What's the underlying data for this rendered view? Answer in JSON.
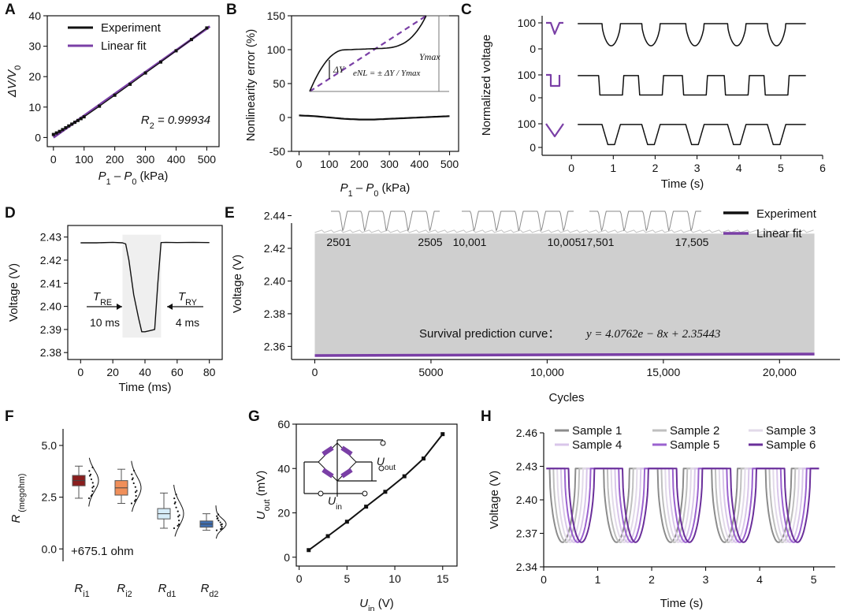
{
  "chart_data": [
    {
      "panel": "A",
      "type": "scatter",
      "xlabel_parts": [
        "P",
        "1",
        " – P",
        "0",
        " (kPa)"
      ],
      "ylabel_parts": [
        "ΔV/V",
        "0"
      ],
      "xlim": [
        -20,
        540
      ],
      "ylim": [
        -3,
        40
      ],
      "xticks": [
        0,
        100,
        200,
        300,
        400,
        500
      ],
      "yticks": [
        0,
        10,
        20,
        30,
        40
      ],
      "legend": [
        "Experiment",
        "Linear fit"
      ],
      "legend_position": "top-left",
      "colors": {
        "experiment": "#111111",
        "fit": "#7a3fa6"
      },
      "annotation_parts": [
        "R",
        "2",
        " = 0.99934"
      ],
      "series": [
        {
          "name": "Experiment",
          "x": [
            0,
            10,
            20,
            30,
            40,
            50,
            60,
            70,
            80,
            90,
            100,
            150,
            200,
            250,
            300,
            350,
            400,
            450,
            500
          ],
          "y": [
            1.0,
            1.5,
            2.0,
            2.6,
            3.2,
            3.8,
            4.4,
            5.0,
            5.6,
            6.2,
            6.8,
            10.3,
            13.9,
            17.5,
            21.2,
            24.8,
            28.5,
            32.2,
            36.0
          ]
        },
        {
          "name": "Linear fit",
          "x": [
            0,
            510
          ],
          "y": [
            0.0,
            36.5
          ]
        }
      ]
    },
    {
      "panel": "B",
      "type": "line",
      "xlabel_parts": [
        "P",
        "1",
        " – P",
        "0",
        " (kPa)"
      ],
      "ylabel": "Nonlinearity error (%)",
      "xlim": [
        -25,
        530
      ],
      "ylim": [
        -50,
        150
      ],
      "xticks": [
        0,
        100,
        200,
        300,
        400,
        500
      ],
      "yticks": [
        -50,
        0,
        50,
        100,
        150
      ],
      "annotations": {
        "delta": "ΔY",
        "ymax": "Ymax",
        "formula": "eNL = ± ΔY / Ymax"
      },
      "series": [
        {
          "name": "error",
          "x": [
            0,
            50,
            100,
            150,
            200,
            250,
            300,
            350,
            400,
            450,
            500
          ],
          "y": [
            3,
            2,
            0,
            -2,
            -3,
            -3,
            -2,
            -1,
            0,
            1,
            2
          ]
        }
      ]
    },
    {
      "panel": "C",
      "type": "line",
      "xlabel": "Time (s)",
      "ylabel": "Normalized voltage",
      "xlim": [
        -0.7,
        6
      ],
      "xticks": [
        0,
        1,
        2,
        3,
        4,
        5,
        6
      ],
      "sub_ylim": [
        -10,
        110
      ],
      "sub_yticks": [
        0,
        100
      ],
      "dips_centers_s": [
        0.95,
        1.9,
        2.95,
        3.95,
        4.9
      ]
    },
    {
      "panel": "D",
      "type": "line",
      "xlabel": "Time (ms)",
      "ylabel": "Voltage (V)",
      "xlim": [
        -8,
        88
      ],
      "ylim": [
        2.377,
        2.435
      ],
      "xticks": [
        0,
        20,
        40,
        60,
        80
      ],
      "yticks": [
        2.38,
        2.39,
        2.4,
        2.41,
        2.42,
        2.43
      ],
      "ytick_labels": [
        "2.38",
        "2.39",
        "2.40",
        "2.41",
        "2.42",
        "2.43"
      ],
      "labels": {
        "tre_main": "T",
        "tre_sub": "RE",
        "tre_value": "10 ms",
        "try_main": "T",
        "try_sub": "RY",
        "try_value": "4 ms"
      },
      "series": [
        {
          "name": "signal",
          "x": [
            0,
            10,
            20,
            26,
            28,
            30,
            33,
            36,
            38,
            40,
            43,
            46,
            48,
            50,
            53,
            60,
            70,
            80
          ],
          "y": [
            2.4275,
            2.4275,
            2.4277,
            2.4275,
            2.427,
            2.42,
            2.405,
            2.395,
            2.389,
            2.389,
            2.3895,
            2.39,
            2.41,
            2.4276,
            2.4277,
            2.4276,
            2.4277,
            2.4276
          ]
        }
      ]
    },
    {
      "panel": "E",
      "type": "area",
      "xlabel": "Cycles",
      "ylabel": "Voltage (V)",
      "xlim": [
        -1000,
        22600
      ],
      "ylim": [
        2.352,
        2.447
      ],
      "xticks": [
        0,
        5000,
        10000,
        15000,
        20000
      ],
      "xtick_labels": [
        "0",
        "5000",
        "10,000",
        "15,000",
        "20,000"
      ],
      "yticks": [
        2.36,
        2.38,
        2.4,
        2.42,
        2.44
      ],
      "ytick_labels": [
        "2.36",
        "2.38",
        "2.40",
        "2.42",
        "2.44"
      ],
      "band": {
        "x": [
          0,
          21500
        ],
        "ymin": 2.3545,
        "ymax": 2.429
      },
      "legend": [
        "Experiment",
        "Linear fit"
      ],
      "legend_position": "top-right",
      "insets": [
        {
          "start": "2501",
          "end": "2505"
        },
        {
          "start": "10,001",
          "end": "10,005"
        },
        {
          "start": "17,501",
          "end": "17,505"
        }
      ],
      "annotation_label": "Survival prediction curve：",
      "annotation_formula": "y = 4.0762e − 8x + 2.35443",
      "series": [
        {
          "name": "fit",
          "x": [
            0,
            21500
          ],
          "y": [
            2.35443,
            2.35531
          ]
        }
      ]
    },
    {
      "panel": "F",
      "type": "box",
      "ylabel_main": "R",
      "ylabel_unit": " (megohm)",
      "ylim": [
        -0.6,
        5.8
      ],
      "yticks": [
        0.0,
        2.5,
        5.0
      ],
      "ytick_labels": [
        "0.0",
        "2.5",
        "5.0"
      ],
      "annotation": "+675.1 ohm",
      "categories": [
        {
          "main": "R",
          "sub": "i1"
        },
        {
          "main": "R",
          "sub": "i2"
        },
        {
          "main": "R",
          "sub": "d1"
        },
        {
          "main": "R",
          "sub": "d2"
        }
      ],
      "boxes": [
        {
          "q1": 3.05,
          "median": 3.3,
          "q3": 3.55,
          "min": 2.45,
          "max": 4.0,
          "color": "#8b1e1e"
        },
        {
          "q1": 2.6,
          "median": 2.95,
          "q3": 3.3,
          "min": 2.2,
          "max": 3.85,
          "color": "#f08f5a"
        },
        {
          "q1": 1.45,
          "median": 1.7,
          "q3": 1.95,
          "min": 1.0,
          "max": 2.7,
          "color": "#d6ecf8"
        },
        {
          "q1": 1.05,
          "median": 1.2,
          "q3": 1.35,
          "min": 0.9,
          "max": 1.7,
          "color": "#3f6fb2"
        }
      ]
    },
    {
      "panel": "G",
      "type": "line",
      "xlabel_parts": [
        "U",
        "in",
        " (V)"
      ],
      "ylabel_parts": [
        "U",
        "out",
        " (mV)"
      ],
      "xlim": [
        -0.3,
        16.5
      ],
      "ylim": [
        -4,
        60
      ],
      "xticks": [
        0,
        5,
        10,
        15
      ],
      "yticks": [
        0,
        20,
        40,
        60
      ],
      "circuit_labels": {
        "out_main": "U",
        "out_sub": "out",
        "in_main": "U",
        "in_sub": "in"
      },
      "series": [
        {
          "name": "Uout",
          "x": [
            1,
            3,
            5,
            7,
            9,
            11,
            13,
            15
          ],
          "y": [
            3.2,
            9.5,
            16.0,
            22.8,
            29.5,
            36.5,
            44.5,
            55.5
          ]
        }
      ]
    },
    {
      "panel": "H",
      "type": "line",
      "xlabel": "Time (s)",
      "ylabel": "Voltage (V)",
      "xlim": [
        0,
        5.4
      ],
      "ylim": [
        2.34,
        2.46
      ],
      "xticks": [
        0,
        1,
        2,
        3,
        4,
        5
      ],
      "yticks": [
        2.34,
        2.37,
        2.4,
        2.43,
        2.46
      ],
      "ytick_labels": [
        "2.34",
        "2.37",
        "2.40",
        "2.43",
        "2.46"
      ],
      "legend_position": "top",
      "series": [
        {
          "name": "Sample 1",
          "color": "#8c8c8c"
        },
        {
          "name": "Sample 2",
          "color": "#bfbfbf"
        },
        {
          "name": "Sample 3",
          "color": "#e2dae9"
        },
        {
          "name": "Sample 4",
          "color": "#d9c6ea"
        },
        {
          "name": "Sample 5",
          "color": "#9b62cf"
        },
        {
          "name": "Sample 6",
          "color": "#6a2f9a"
        }
      ]
    }
  ],
  "panel_letters": [
    "A",
    "B",
    "C",
    "D",
    "E",
    "F",
    "G",
    "H"
  ]
}
